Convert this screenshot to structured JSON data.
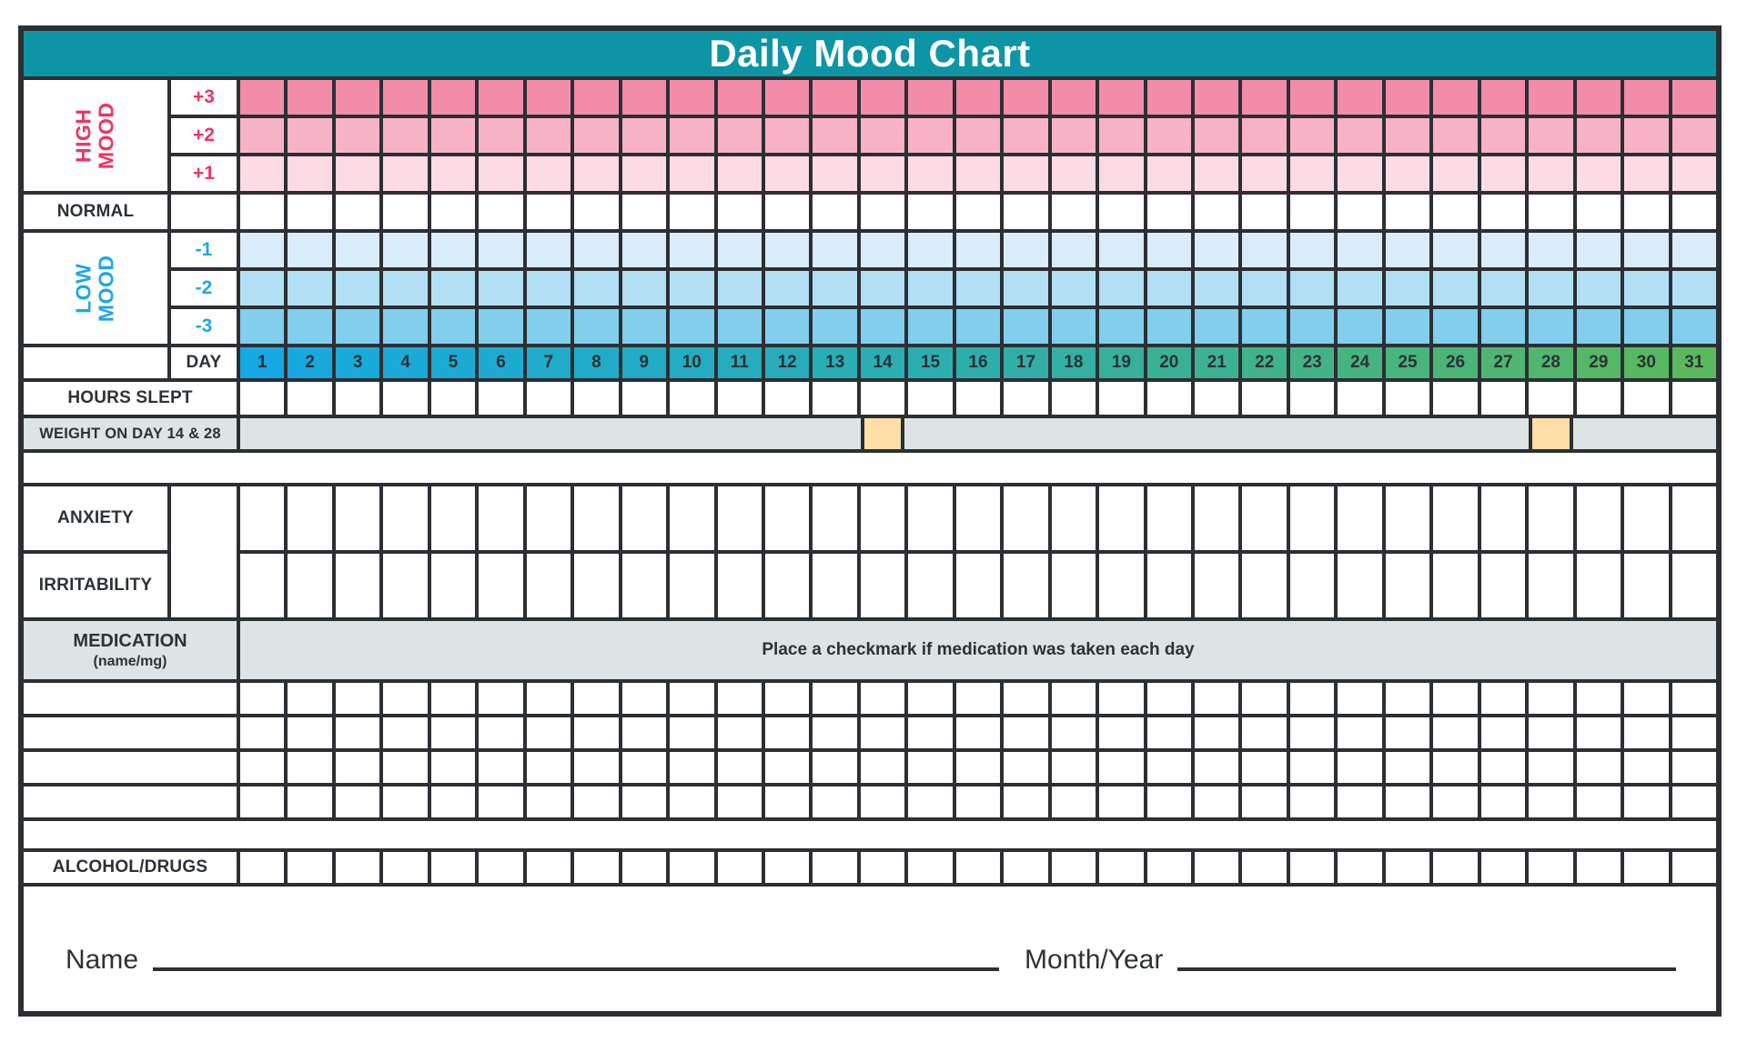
{
  "title": "Daily Mood Chart",
  "colors": {
    "header_bg": "#0e95a5",
    "grid_line": "#2c2f33",
    "text_dark": "#2c3236",
    "high_mood": "#ed3564",
    "low_mood": "#20a7e0",
    "row_plus3": "#f28ca8",
    "row_plus2": "#f7b3c5",
    "row_plus1": "#fcdbe5",
    "row_minus1": "#d8edf9",
    "row_minus2": "#b2dff4",
    "row_minus3": "#81cfec",
    "day_gradient_start": "#16a8e2",
    "day_gradient_mid": "#2eaeab",
    "day_gradient_end": "#5ab95d",
    "panel_gray": "#dce5e4",
    "weight_highlight": "#fedfa8"
  },
  "mood_scale": {
    "high_label": "HIGH MOOD",
    "normal_label": "NORMAL",
    "low_label": "LOW MOOD",
    "high_rows": [
      {
        "label": "+3"
      },
      {
        "label": "+2"
      },
      {
        "label": "+1"
      }
    ],
    "low_rows": [
      {
        "label": "-1"
      },
      {
        "label": "-2"
      },
      {
        "label": "-3"
      }
    ]
  },
  "day_header": {
    "label": "DAY",
    "days": [
      1,
      2,
      3,
      4,
      5,
      6,
      7,
      8,
      9,
      10,
      11,
      12,
      13,
      14,
      15,
      16,
      17,
      18,
      19,
      20,
      21,
      22,
      23,
      24,
      25,
      26,
      27,
      28,
      29,
      30,
      31
    ]
  },
  "tracking_rows": {
    "hours_slept_label": "HOURS SLEPT",
    "weight_label": "WEIGHT ON DAY 14 & 28",
    "weight_highlight_days": [
      14,
      28
    ],
    "anxiety_label": "ANXIETY",
    "irritability_label": "IRRITABILITY",
    "alcohol_label": "ALCOHOL/DRUGS"
  },
  "medication": {
    "label": "MEDICATION",
    "sublabel": "(name/mg)",
    "instruction": "Place a checkmark if medication was taken each day",
    "blank_row_count": 4
  },
  "footer": {
    "name_label": "Name",
    "month_year_label": "Month/Year"
  }
}
